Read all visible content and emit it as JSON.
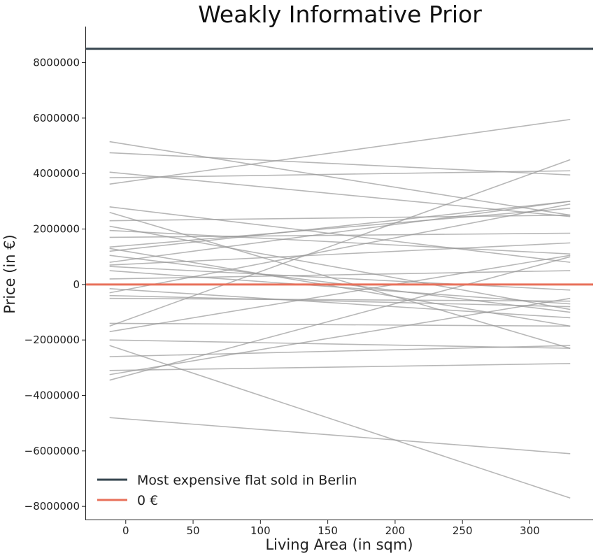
{
  "chart_data": {
    "type": "line",
    "title": "Weakly Informative Prior",
    "xlabel": "Living Area (in sqm)",
    "ylabel": "Price (in €)",
    "xlim": [
      -30,
      347
    ],
    "ylim": [
      -8500000,
      9300000
    ],
    "xticks": [
      0,
      50,
      100,
      150,
      200,
      250,
      300
    ],
    "yticks": [
      -8000000,
      -6000000,
      -4000000,
      -2000000,
      0,
      2000000,
      4000000,
      6000000,
      8000000
    ],
    "grid": false,
    "legend_position": "bottom-left",
    "reference_lines": [
      {
        "name": "Most expensive flat sold in Berlin",
        "y": 8500000,
        "color": "#36454f"
      },
      {
        "name": "0 €",
        "y": 0,
        "color": "#e8705a"
      }
    ],
    "prior_lines_color": "#999999",
    "prior_lines_x": [
      -12,
      330
    ],
    "prior_lines": [
      [
        5150000,
        2500000
      ],
      [
        4750000,
        3950000
      ],
      [
        4050000,
        2450000
      ],
      [
        3850000,
        4100000
      ],
      [
        3620000,
        5950000
      ],
      [
        2800000,
        800000
      ],
      [
        2600000,
        -2300000
      ],
      [
        2300000,
        2500000
      ],
      [
        2100000,
        -900000
      ],
      [
        1950000,
        1100000
      ],
      [
        1700000,
        1850000
      ],
      [
        1350000,
        2750000
      ],
      [
        1300000,
        -1500000
      ],
      [
        1200000,
        3000000
      ],
      [
        1050000,
        -1000000
      ],
      [
        800000,
        3000000
      ],
      [
        700000,
        1500000
      ],
      [
        650000,
        -200000
      ],
      [
        500000,
        -700000
      ],
      [
        200000,
        500000
      ],
      [
        -150000,
        -1200000
      ],
      [
        -300000,
        2900000
      ],
      [
        -400000,
        -800000
      ],
      [
        -500000,
        -600000
      ],
      [
        -1400000,
        -1500000
      ],
      [
        -1500000,
        4500000
      ],
      [
        -1700000,
        1050000
      ],
      [
        -2000000,
        -2300000
      ],
      [
        -2200000,
        -7700000
      ],
      [
        -2600000,
        -2200000
      ],
      [
        -3100000,
        -2850000
      ],
      [
        -3250000,
        -500000
      ],
      [
        -3450000,
        1000000
      ],
      [
        -4800000,
        -6100000
      ]
    ]
  }
}
